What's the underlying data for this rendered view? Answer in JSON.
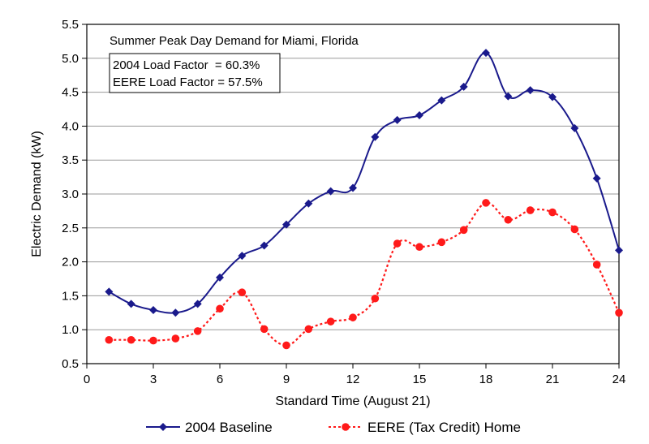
{
  "chart_data": {
    "type": "line",
    "title": "Summer Peak Day Demand for Miami, Florida",
    "annotations": [
      "2004 Load Factor  = 60.3%",
      "EERE Load Factor = 57.5%"
    ],
    "xlabel": "Standard Time (August 21)",
    "ylabel": "Electric Demand (kW)",
    "xlim": [
      0,
      24
    ],
    "ylim": [
      0.5,
      5.5
    ],
    "xticks": [
      "0",
      "3",
      "6",
      "9",
      "12",
      "15",
      "18",
      "21",
      "24"
    ],
    "yticks": [
      "0.5",
      "1.0",
      "1.5",
      "2.0",
      "2.5",
      "3.0",
      "3.5",
      "4.0",
      "4.5",
      "5.0",
      "5.5"
    ],
    "grid": "horizontal",
    "legend_position": "bottom",
    "x": [
      1,
      2,
      3,
      4,
      5,
      6,
      7,
      8,
      9,
      10,
      11,
      12,
      13,
      14,
      15,
      16,
      17,
      18,
      19,
      20,
      21,
      22,
      23,
      24
    ],
    "series": [
      {
        "name": "2004 Baseline",
        "color": "#1a1a8c",
        "line": "solid",
        "marker": "diamond",
        "values": [
          1.56,
          1.38,
          1.29,
          1.25,
          1.38,
          1.77,
          2.09,
          2.24,
          2.55,
          2.86,
          3.04,
          3.09,
          3.84,
          4.09,
          4.16,
          4.38,
          4.58,
          5.08,
          4.44,
          4.53,
          4.43,
          3.97,
          3.23,
          2.17
        ]
      },
      {
        "name": "EERE (Tax Credit) Home",
        "color": "#ff1a1a",
        "line": "dotted",
        "marker": "circle",
        "values": [
          0.85,
          0.85,
          0.84,
          0.87,
          0.98,
          1.31,
          1.55,
          1.01,
          0.77,
          1.01,
          1.12,
          1.18,
          1.46,
          2.27,
          2.22,
          2.29,
          2.47,
          2.87,
          2.62,
          2.76,
          2.73,
          2.48,
          1.96,
          1.25
        ]
      }
    ]
  }
}
